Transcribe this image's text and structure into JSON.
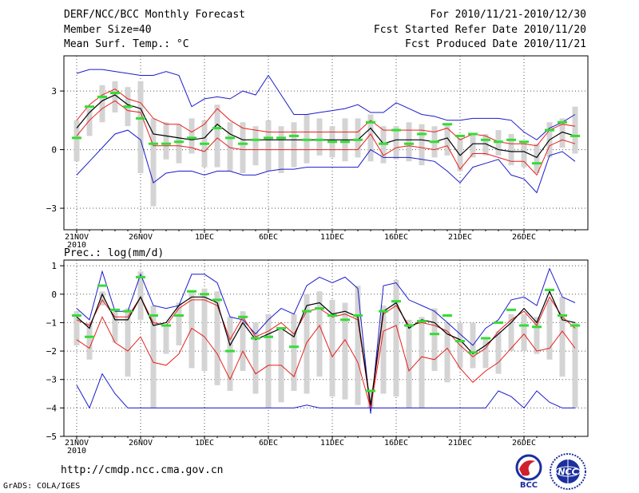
{
  "header": {
    "title": "DERF/NCC/BCC Monthly Forecast",
    "member_size": "Member Size=40",
    "variable": "Mean Surf. Temp.: °C",
    "period": "For 2010/11/21-2010/12/30",
    "started": "Fcst Started Refer Date 2010/11/20",
    "produced": "Fcst Produced Date 2010/11/21"
  },
  "footer": {
    "url": "http://cmdp.ncc.cma.gov.cn",
    "credit": "GrADS: COLA/IGES",
    "logo_bcc": "BCC",
    "logo_ncc": "NCC"
  },
  "colors": {
    "grid": "#555555",
    "box": "#d4d4d4",
    "median": "#000000",
    "quartile": "#e8201c",
    "extreme": "#1b1bcc",
    "obs": "#33dd33"
  },
  "chart_data": [
    {
      "type": "line",
      "title": "Mean Surf. Temp.: °C",
      "ylim": [
        -4.1,
        4.8
      ],
      "yticks": [
        -3,
        0,
        3
      ],
      "x_tick_labels": [
        "21NOV\n2010",
        "26NOV",
        "1DEC",
        "6DEC",
        "11DEC",
        "16DEC",
        "21DEC",
        "26DEC"
      ],
      "days": 40,
      "series": [
        {
          "name": "max",
          "values": [
            3.9,
            4.1,
            4.1,
            4.0,
            3.9,
            3.8,
            3.8,
            4.0,
            3.8,
            2.2,
            2.6,
            2.7,
            2.6,
            3.0,
            2.8,
            3.8,
            2.8,
            1.8,
            1.8,
            1.9,
            2.0,
            2.1,
            2.3,
            1.9,
            1.9,
            2.4,
            2.1,
            1.8,
            1.7,
            1.5,
            1.5,
            1.6,
            1.6,
            1.6,
            1.5,
            0.9,
            0.5,
            1.1,
            1.4,
            1.8
          ]
        },
        {
          "name": "q75",
          "values": [
            1.5,
            2.3,
            2.8,
            3.1,
            2.6,
            2.4,
            1.6,
            1.3,
            1.3,
            0.9,
            1.3,
            2.1,
            1.5,
            1.1,
            1.0,
            0.9,
            0.9,
            0.9,
            0.9,
            0.9,
            0.9,
            0.9,
            0.9,
            1.5,
            1.0,
            1.0,
            1.0,
            1.0,
            0.9,
            1.1,
            0.5,
            0.8,
            0.7,
            0.4,
            0.3,
            0.3,
            0.2,
            1.0,
            1.3,
            1.2
          ]
        },
        {
          "name": "median",
          "values": [
            1.1,
            1.9,
            2.5,
            2.8,
            2.3,
            2.1,
            0.8,
            0.7,
            0.6,
            0.5,
            0.6,
            1.3,
            0.8,
            0.5,
            0.5,
            0.5,
            0.5,
            0.5,
            0.5,
            0.5,
            0.5,
            0.5,
            0.5,
            1.1,
            0.3,
            0.5,
            0.5,
            0.5,
            0.4,
            0.6,
            -0.3,
            0.3,
            0.3,
            0.0,
            -0.1,
            -0.1,
            -0.4,
            0.5,
            0.9,
            0.7
          ]
        },
        {
          "name": "q25",
          "values": [
            0.7,
            1.5,
            2.1,
            2.5,
            2.0,
            1.9,
            0.2,
            0.2,
            0.2,
            0.1,
            -0.1,
            0.6,
            0.1,
            0.0,
            0.0,
            0.0,
            0.0,
            0.0,
            0.0,
            0.0,
            0.0,
            0.0,
            0.0,
            0.8,
            -0.3,
            0.1,
            0.2,
            0.1,
            0.0,
            0.2,
            -1.0,
            -0.2,
            -0.2,
            -0.4,
            -0.6,
            -0.6,
            -1.3,
            0.2,
            0.5,
            0.3
          ]
        },
        {
          "name": "min",
          "values": [
            -1.3,
            -0.6,
            0.1,
            0.8,
            1.0,
            0.5,
            -1.7,
            -1.2,
            -1.1,
            -1.1,
            -1.3,
            -1.1,
            -1.1,
            -1.3,
            -1.3,
            -1.1,
            -1.0,
            -1.0,
            -0.9,
            -0.9,
            -0.9,
            -0.9,
            -0.9,
            0.0,
            -0.4,
            -0.4,
            -0.4,
            -0.5,
            -0.6,
            -1.1,
            -1.7,
            -0.9,
            -0.7,
            -0.5,
            -1.3,
            -1.5,
            -2.2,
            -0.3,
            -0.1,
            -0.6
          ]
        },
        {
          "name": "box_top",
          "values": [
            1.5,
            2.1,
            3.3,
            3.5,
            3.2,
            3.5,
            1.6,
            1.4,
            1.3,
            1.6,
            1.5,
            2.3,
            1.4,
            1.4,
            1.2,
            1.5,
            1.2,
            1.4,
            1.8,
            1.6,
            1.2,
            1.6,
            1.6,
            1.8,
            1.2,
            1.2,
            1.4,
            1.3,
            1.2,
            1.3,
            0.6,
            0.8,
            0.8,
            1.0,
            0.8,
            0.4,
            0.3,
            1.4,
            1.6,
            2.2
          ]
        },
        {
          "name": "box_bottom",
          "values": [
            -0.6,
            0.7,
            1.4,
            1.9,
            1.2,
            -1.2,
            -2.9,
            -0.5,
            -0.7,
            -0.2,
            -0.9,
            -0.9,
            -1.1,
            -1.2,
            -0.8,
            -1.1,
            -1.2,
            -0.9,
            -0.7,
            -0.3,
            -0.4,
            -0.6,
            -0.4,
            -0.6,
            -0.7,
            -0.5,
            -0.6,
            -0.8,
            -0.4,
            -0.3,
            -1.1,
            -0.4,
            -0.3,
            -0.3,
            -0.8,
            -0.9,
            -1.2,
            -0.4,
            0.1,
            -0.2
          ]
        },
        {
          "name": "obs",
          "values": [
            0.6,
            2.2,
            2.7,
            2.9,
            2.2,
            1.6,
            0.3,
            0.3,
            0.4,
            0.6,
            0.3,
            1.1,
            0.6,
            0.3,
            0.5,
            0.6,
            0.6,
            0.7,
            0.5,
            0.5,
            0.4,
            0.4,
            0.5,
            1.4,
            0.3,
            1.0,
            0.3,
            0.8,
            0.4,
            1.3,
            0.7,
            0.8,
            0.5,
            0.4,
            0.5,
            0.4,
            -0.7,
            1.0,
            1.4,
            0.7
          ]
        }
      ]
    },
    {
      "type": "line",
      "title": "Prec.: log(mm/d)",
      "ylim": [
        -5,
        1.2
      ],
      "yticks": [
        -5,
        -4,
        -3,
        -2,
        -1,
        0,
        1
      ],
      "x_tick_labels": [
        "21NOV\n2010",
        "26NOV",
        "1DEC",
        "6DEC",
        "11DEC",
        "16DEC",
        "21DEC",
        "26DEC"
      ],
      "days": 40,
      "series": [
        {
          "name": "max",
          "values": [
            -0.5,
            -0.9,
            0.8,
            -0.6,
            -0.6,
            0.7,
            -0.4,
            -0.5,
            -0.4,
            0.7,
            0.7,
            0.4,
            -0.8,
            -0.9,
            -1.4,
            -0.9,
            -0.5,
            -0.7,
            0.3,
            0.6,
            0.4,
            0.6,
            0.2,
            -4.2,
            0.3,
            0.4,
            -0.2,
            -0.4,
            -0.6,
            -1.0,
            -1.4,
            -1.8,
            -1.2,
            -0.9,
            -0.2,
            -0.1,
            -0.4,
            0.9,
            -0.1,
            -0.3
          ]
        },
        {
          "name": "q75",
          "values": [
            -0.9,
            -1.1,
            -0.2,
            -0.8,
            -0.8,
            -0.1,
            -1.0,
            -1.1,
            -0.5,
            -0.2,
            -0.2,
            -0.4,
            -1.6,
            -0.8,
            -1.5,
            -1.3,
            -1.0,
            -1.4,
            -0.6,
            -0.5,
            -0.8,
            -0.7,
            -0.9,
            -4.0,
            -0.7,
            -0.4,
            -1.1,
            -1.0,
            -1.1,
            -1.3,
            -1.8,
            -2.2,
            -1.9,
            -1.3,
            -0.9,
            -0.6,
            -1.1,
            -0.1,
            -0.8,
            -1.2
          ]
        },
        {
          "name": "median",
          "values": [
            -0.8,
            -1.2,
            0.0,
            -0.9,
            -0.9,
            -0.1,
            -1.1,
            -1.0,
            -0.4,
            -0.1,
            -0.1,
            -0.3,
            -1.8,
            -1.0,
            -1.6,
            -1.4,
            -1.2,
            -1.5,
            -0.4,
            -0.3,
            -0.7,
            -0.6,
            -0.8,
            -3.9,
            -0.6,
            -0.3,
            -1.2,
            -0.9,
            -1.0,
            -1.4,
            -1.6,
            -2.1,
            -1.8,
            -1.4,
            -1.0,
            -0.5,
            -1.0,
            0.1,
            -0.9,
            -1.0
          ]
        },
        {
          "name": "q25",
          "values": [
            -1.6,
            -1.9,
            -0.8,
            -1.7,
            -2.0,
            -1.5,
            -2.4,
            -2.5,
            -2.1,
            -1.2,
            -1.5,
            -2.1,
            -3.0,
            -2.0,
            -2.8,
            -2.5,
            -2.5,
            -2.9,
            -1.7,
            -1.1,
            -2.2,
            -1.6,
            -2.4,
            -4.0,
            -1.3,
            -1.1,
            -2.7,
            -2.2,
            -2.3,
            -1.9,
            -2.6,
            -3.1,
            -2.7,
            -2.4,
            -1.9,
            -1.4,
            -2.0,
            -1.9,
            -1.3,
            -1.9
          ]
        },
        {
          "name": "min",
          "values": [
            -3.2,
            -4.0,
            -2.8,
            -3.5,
            -4.0,
            -4.0,
            -4.0,
            -4.0,
            -4.0,
            -4.0,
            -4.0,
            -4.0,
            -4.0,
            -4.0,
            -4.0,
            -4.0,
            -4.0,
            -4.0,
            -3.9,
            -4.0,
            -4.0,
            -4.0,
            -4.0,
            -4.0,
            -4.0,
            -4.0,
            -4.0,
            -4.0,
            -4.0,
            -4.0,
            -4.0,
            -4.0,
            -4.0,
            -3.4,
            -3.6,
            -4.0,
            -3.4,
            -3.8,
            -4.0,
            -4.0
          ]
        },
        {
          "name": "box_top",
          "values": [
            -0.6,
            -1.0,
            0.1,
            -0.6,
            -0.5,
            0.8,
            -0.4,
            -1.1,
            -0.3,
            0.1,
            0.2,
            0.1,
            -0.8,
            -0.6,
            -1.0,
            -0.7,
            -1.2,
            -0.7,
            0.0,
            0.1,
            -0.2,
            -0.3,
            0.3,
            -3.4,
            -0.4,
            0.5,
            -0.9,
            -0.8,
            -0.5,
            -1.0,
            -1.0,
            -1.0,
            -1.6,
            -1.3,
            -0.7,
            -0.7,
            -0.8,
            -0.2,
            -0.1,
            -1.0
          ]
        },
        {
          "name": "box_bottom",
          "values": [
            -1.8,
            -2.3,
            -0.4,
            -1.7,
            -2.9,
            -0.9,
            -4.0,
            -2.1,
            -1.8,
            -2.6,
            -2.7,
            -3.2,
            -3.4,
            -2.7,
            -3.5,
            -4.0,
            -3.8,
            -3.4,
            -3.5,
            -2.9,
            -3.6,
            -3.7,
            -3.9,
            -4.0,
            -3.5,
            -3.6,
            -4.0,
            -4.0,
            -2.7,
            -3.1,
            -2.6,
            -2.6,
            -2.6,
            -2.8,
            -2.0,
            -2.0,
            -2.1,
            -2.3,
            -2.9,
            -4.0
          ]
        },
        {
          "name": "obs",
          "values": [
            -0.75,
            -1.5,
            0.3,
            -0.55,
            -0.6,
            0.6,
            -0.75,
            -1.1,
            -0.75,
            0.1,
            0.0,
            -0.2,
            -2.0,
            -0.8,
            -1.55,
            -1.5,
            -1.2,
            -1.85,
            -0.6,
            -0.5,
            -0.75,
            -0.9,
            -0.75,
            -3.4,
            -0.6,
            -0.25,
            -1.1,
            -0.95,
            -1.4,
            -0.75,
            -1.65,
            -2.05,
            -1.55,
            -1.0,
            -0.55,
            -1.1,
            -1.15,
            0.15,
            -0.75,
            -1.1
          ]
        }
      ]
    }
  ]
}
